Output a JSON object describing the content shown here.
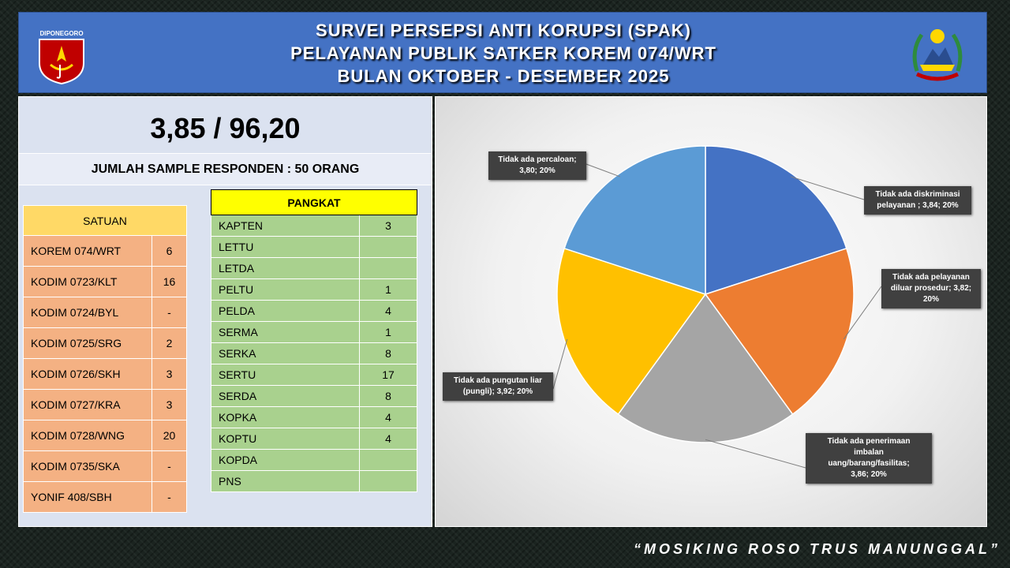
{
  "header": {
    "title_lines": [
      "SURVEI PERSEPSI ANTI KORUPSI (SPAK)",
      "PELAYANAN PUBLIK SATKER KOREM 074/WRT",
      "BULAN OKTOBER - DESEMBER 2025"
    ],
    "left_logo_text": "DIPONEGORO"
  },
  "score": "3,85 / 96,20",
  "sample_text": "JUMLAH SAMPLE RESPONDEN : 50 ORANG",
  "satuan": {
    "header": "SATUAN",
    "rows": [
      {
        "name": "KOREM 074/WRT",
        "value": "6"
      },
      {
        "name": "KODIM 0723/KLT",
        "value": "16"
      },
      {
        "name": "KODIM 0724/BYL",
        "value": "-"
      },
      {
        "name": "KODIM 0725/SRG",
        "value": "2"
      },
      {
        "name": "KODIM 0726/SKH",
        "value": "3"
      },
      {
        "name": "KODIM 0727/KRA",
        "value": "3"
      },
      {
        "name": "KODIM 0728/WNG",
        "value": "20"
      },
      {
        "name": "KODIM 0735/SKA",
        "value": "-"
      },
      {
        "name": "YONIF 408/SBH",
        "value": "-"
      }
    ]
  },
  "pangkat": {
    "header": "PANGKAT",
    "rows": [
      {
        "name": "KAPTEN",
        "value": "3"
      },
      {
        "name": "LETTU",
        "value": ""
      },
      {
        "name": "LETDA",
        "value": ""
      },
      {
        "name": "PELTU",
        "value": "1"
      },
      {
        "name": "PELDA",
        "value": "4"
      },
      {
        "name": "SERMA",
        "value": "1"
      },
      {
        "name": "SERKA",
        "value": "8"
      },
      {
        "name": "SERTU",
        "value": "17"
      },
      {
        "name": "SERDA",
        "value": "8"
      },
      {
        "name": "KOPKA",
        "value": "4"
      },
      {
        "name": "KOPTU",
        "value": "4"
      },
      {
        "name": "KOPDA",
        "value": ""
      },
      {
        "name": "PNS",
        "value": ""
      }
    ]
  },
  "chart_data": {
    "type": "pie",
    "slices": [
      {
        "label_lines": [
          "Tidak ada diskriminasi",
          "pelayanan  ; 3,84; 20%"
        ],
        "score": 3.84,
        "percent": 20,
        "color": "#4472c4"
      },
      {
        "label_lines": [
          "Tidak ada pelayanan",
          "diluar prosedur; 3,82;",
          "20%"
        ],
        "score": 3.82,
        "percent": 20,
        "color": "#ed7d31"
      },
      {
        "label_lines": [
          "Tidak ada penerimaan",
          "imbalan",
          "uang/barang/fasilitas;",
          "3,86; 20%"
        ],
        "score": 3.86,
        "percent": 20,
        "color": "#a5a5a5"
      },
      {
        "label_lines": [
          "Tidak ada pungutan liar",
          "(pungli); 3,92; 20%"
        ],
        "score": 3.92,
        "percent": 20,
        "color": "#ffc000"
      },
      {
        "label_lines": [
          "Tidak ada percaloan;",
          "3,80; 20%"
        ],
        "score": 3.8,
        "percent": 20,
        "color": "#5b9bd5"
      }
    ]
  },
  "motto": "“MOSIKING ROSO TRUS MANUNGGAL”"
}
